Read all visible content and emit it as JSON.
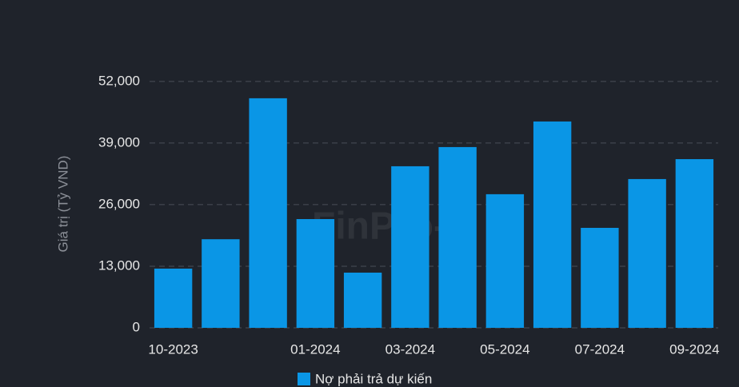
{
  "chart_data": {
    "type": "bar",
    "y_label": "Giá trị (Tỷ VND)",
    "watermark": "FinPro-X",
    "categories": [
      "10-2023",
      null,
      null,
      "01-2024",
      null,
      "03-2024",
      null,
      "05-2024",
      null,
      "07-2024",
      null,
      "09-2024"
    ],
    "series": [
      {
        "name": "Nợ phải trả dự kiến",
        "color": "#0a96e6",
        "values": [
          12500,
          18700,
          48450,
          22950,
          11650,
          34100,
          38150,
          28200,
          43550,
          21100,
          31400,
          35600
        ]
      }
    ],
    "ylim": [
      0,
      54000
    ],
    "yticks": [
      0,
      {
        "value": 13000,
        "label": "13,000"
      },
      {
        "value": 26000,
        "label": "26,000"
      },
      {
        "value": 39000,
        "label": "39,000"
      },
      {
        "value": 52000,
        "label": "52,000"
      }
    ],
    "grid": true,
    "legend": "bottom"
  }
}
